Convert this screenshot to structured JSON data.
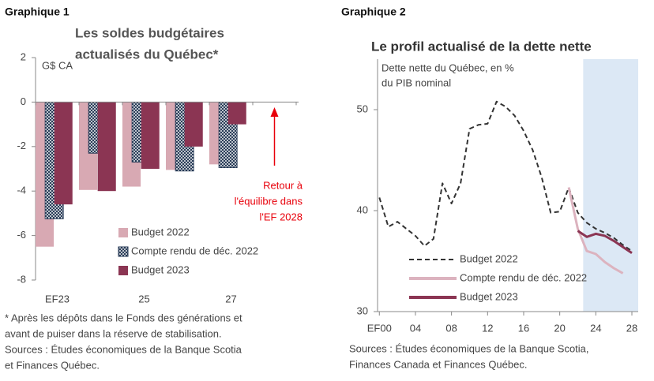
{
  "chart_data": [
    {
      "type": "bar",
      "figure_label": "Graphique 1",
      "title": [
        "Les soldes budgétaires",
        "actualisés du Québec*"
      ],
      "y_label": "G$ CA",
      "categories": [
        "EF23",
        null,
        "25",
        null,
        "27",
        null
      ],
      "series": [
        {
          "name": "Budget 2022",
          "color": "#d8a9b3",
          "values": [
            -6.5,
            -3.95,
            -3.8,
            -3.05,
            -2.8,
            null
          ]
        },
        {
          "name": "Compte rendu de déc. 2022",
          "color": "#1f3350",
          "pattern": "crosshatch",
          "values": [
            -5.25,
            -2.3,
            -2.7,
            -3.1,
            -2.95,
            null
          ]
        },
        {
          "name": "Budget 2023",
          "color": "#8b3553",
          "values": [
            -4.6,
            -4.0,
            -3.0,
            -2.0,
            -1.0,
            0
          ]
        }
      ],
      "ylim": [
        -8,
        2
      ],
      "yticks": [
        2,
        0,
        -2,
        -4,
        -6,
        -8
      ],
      "annotation": {
        "text": [
          "Retour à",
          "l'équilibre dans",
          "l'EF 2028"
        ],
        "color": "#e8000b"
      },
      "notes": [
        "* Après les dépôts dans le Fonds des générations et",
        "avant de puiser dans la réserve de stabilisation.",
        "Sources : Études économiques de la Banque Scotia",
        "et Finances Québec."
      ]
    },
    {
      "type": "line",
      "figure_label": "Graphique 2",
      "title": "Le profil actualisé de la dette nette",
      "y_label": [
        "Dette nette du Québec, en %",
        "du PIB nominal"
      ],
      "x": [
        2000,
        2001,
        2002,
        2003,
        2004,
        2005,
        2006,
        2007,
        2008,
        2009,
        2010,
        2011,
        2012,
        2013,
        2014,
        2015,
        2016,
        2017,
        2018,
        2019,
        2020,
        2021,
        2022,
        2023,
        2024,
        2025,
        2026,
        2027,
        2028
      ],
      "series": [
        {
          "name": "Budget 2022",
          "color": "#333333",
          "line_style": "dashed",
          "values": [
            41.3,
            38.4,
            38.9,
            38.2,
            37.5,
            36.5,
            37.2,
            42.7,
            40.7,
            42.7,
            48.1,
            48.5,
            48.6,
            50.8,
            50.3,
            49.4,
            47.9,
            46.0,
            43.3,
            39.8,
            39.9,
            42.3,
            39.8,
            38.8,
            38.2,
            37.8,
            37.3,
            36.6,
            36.0
          ]
        },
        {
          "name": "Compte rendu de déc. 2022",
          "color": "#dcb3bf",
          "line_style": "solid",
          "values": [
            null,
            null,
            null,
            null,
            null,
            null,
            null,
            null,
            null,
            null,
            null,
            null,
            null,
            null,
            null,
            null,
            null,
            null,
            null,
            null,
            null,
            42.3,
            38.2,
            36.0,
            35.7,
            34.9,
            34.3,
            33.8,
            null
          ]
        },
        {
          "name": "Budget 2023",
          "color": "#8b3553",
          "line_style": "solid",
          "values": [
            null,
            null,
            null,
            null,
            null,
            null,
            null,
            null,
            null,
            null,
            null,
            null,
            null,
            null,
            null,
            null,
            null,
            null,
            null,
            null,
            null,
            null,
            38.0,
            37.4,
            37.7,
            37.5,
            37.0,
            36.4,
            35.8
          ]
        }
      ],
      "xlim": [
        1999.8,
        2028.7
      ],
      "xticks": [
        {
          "value": 2000,
          "label": "EF00"
        },
        {
          "value": 2004,
          "label": "04"
        },
        {
          "value": 2008,
          "label": "08"
        },
        {
          "value": 2012,
          "label": "12"
        },
        {
          "value": 2016,
          "label": "16"
        },
        {
          "value": 2020,
          "label": "20"
        },
        {
          "value": 2024,
          "label": "24"
        },
        {
          "value": 2028,
          "label": "28"
        }
      ],
      "ylim": [
        30,
        55
      ],
      "yticks": [
        30,
        40,
        50
      ],
      "shaded_x": [
        2022.6,
        2028.7
      ],
      "shade_color": "#dce8f5",
      "notes": [
        "Sources : Études économiques de la Banque Scotia,",
        "Finances Canada et Finances Québec."
      ]
    }
  ]
}
